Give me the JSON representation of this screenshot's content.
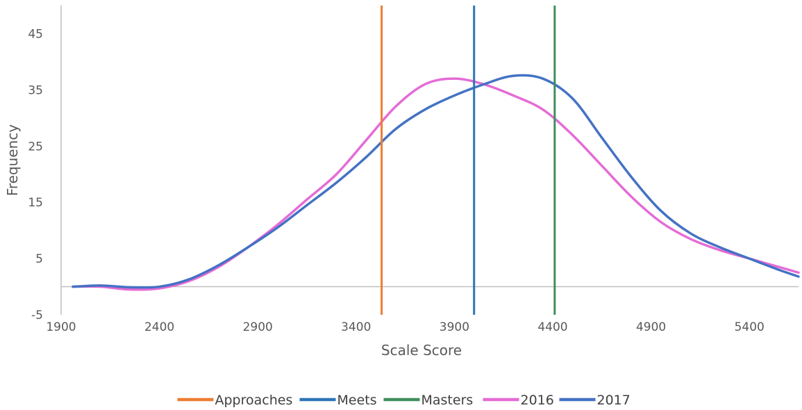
{
  "chart_data": {
    "type": "line",
    "xlabel": "Scale Score",
    "ylabel": "Frequency",
    "xlim": [
      1900,
      5650
    ],
    "ylim": [
      -5,
      50
    ],
    "x_ticks": [
      1900,
      2400,
      2900,
      3400,
      3900,
      4400,
      4900,
      5400
    ],
    "y_ticks": [
      -5,
      5,
      15,
      25,
      35,
      45
    ],
    "grid": false,
    "legend_position": "bottom",
    "reference_lines": [
      {
        "name": "Approaches",
        "x": 3530,
        "color": "#ED7D31"
      },
      {
        "name": "Meets",
        "x": 4000,
        "color": "#2E75B6"
      },
      {
        "name": "Masters",
        "x": 4410,
        "color": "#3E8E5C"
      }
    ],
    "series": [
      {
        "name": "2016",
        "color": "#E56BD6",
        "x": [
          1960,
          2100,
          2250,
          2400,
          2550,
          2700,
          2850,
          3000,
          3150,
          3300,
          3450,
          3600,
          3750,
          3900,
          4050,
          4200,
          4350,
          4500,
          4650,
          4800,
          4950,
          5100,
          5250,
          5400,
          5550,
          5650
        ],
        "y": [
          0,
          0,
          -0.5,
          -0.3,
          1,
          3.5,
          7,
          11,
          15.5,
          20,
          26,
          32,
          36,
          37,
          36,
          34,
          31.5,
          27,
          21.5,
          16,
          11.5,
          8.5,
          6.5,
          5,
          3.5,
          2.5
        ]
      },
      {
        "name": "2017",
        "color": "#4472C4",
        "x": [
          1960,
          2100,
          2250,
          2400,
          2550,
          2700,
          2850,
          3000,
          3150,
          3300,
          3450,
          3600,
          3750,
          3900,
          4050,
          4200,
          4350,
          4500,
          4650,
          4800,
          4950,
          5100,
          5250,
          5400,
          5550,
          5650
        ],
        "y": [
          0,
          0.2,
          -0.1,
          0,
          1.3,
          3.8,
          7,
          10.5,
          14.5,
          18.5,
          23,
          28,
          31.5,
          34,
          36,
          37.5,
          37,
          33.5,
          26.5,
          19.5,
          13.5,
          9.5,
          7,
          5,
          3,
          1.8
        ]
      }
    ]
  }
}
